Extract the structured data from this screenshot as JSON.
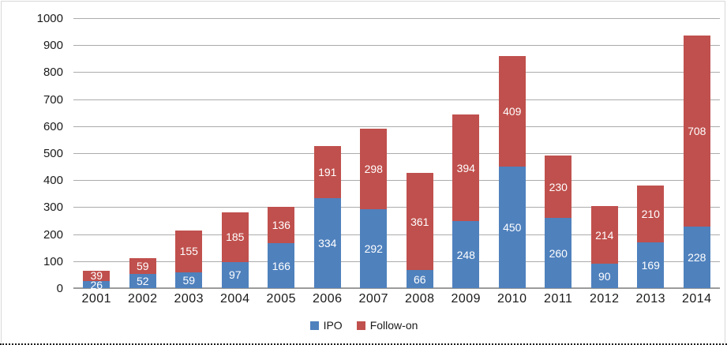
{
  "chart_data": {
    "type": "bar",
    "stacked": true,
    "title": "",
    "xlabel": "",
    "ylabel": "",
    "categories": [
      "2001",
      "2002",
      "2003",
      "2004",
      "2005",
      "2006",
      "2007",
      "2008",
      "2009",
      "2010",
      "2011",
      "2012",
      "2013",
      "2014"
    ],
    "series": [
      {
        "name": "IPO",
        "color": "#4F81BD",
        "values": [
          26,
          52,
          59,
          97,
          166,
          334,
          292,
          66,
          248,
          450,
          260,
          90,
          169,
          228
        ]
      },
      {
        "name": "Follow-on",
        "color": "#C0504D",
        "values": [
          39,
          59,
          155,
          185,
          136,
          191,
          298,
          361,
          394,
          409,
          230,
          214,
          210,
          708
        ]
      }
    ],
    "ylim": [
      0,
      1000
    ],
    "yticks": [
      0,
      100,
      200,
      300,
      400,
      500,
      600,
      700,
      800,
      900,
      1000
    ],
    "grid": true,
    "legend_position": "bottom",
    "data_labels": true,
    "data_label_color": "#FFFFFF"
  },
  "legend": {
    "items": [
      {
        "label": "IPO",
        "color": "#4F81BD"
      },
      {
        "label": "Follow-on",
        "color": "#C0504D"
      }
    ]
  },
  "colors": {
    "background": "#FFFFFF",
    "gridline": "#ABABAB",
    "axis_line": "#9B9B9B",
    "tick_text": "#1A1A1A",
    "frame_border": "#D9D9D9",
    "bottom_dotted_border": "#1A1A1A"
  }
}
